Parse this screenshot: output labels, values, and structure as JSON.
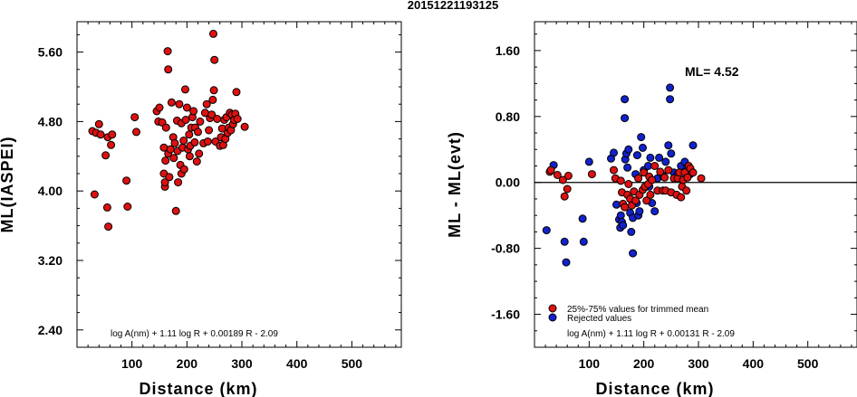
{
  "title": "20151221193125",
  "chart_data": [
    {
      "type": "scatter",
      "xlabel": "Distance (km)",
      "ylabel": "ML(IASPEI)",
      "xlim": [
        0,
        590
      ],
      "ylim": [
        2.2,
        5.95
      ],
      "xticks": [
        100,
        200,
        300,
        400,
        500
      ],
      "yticks": [
        2.4,
        3.2,
        4.0,
        4.8,
        5.6
      ],
      "ytick_labels": [
        "2.40",
        "3.20",
        "4.00",
        "4.80",
        "5.60"
      ],
      "formula": "log A(nm) + 1.11 log R + 0.00189 R - 2.09",
      "series": [
        {
          "color": "#dd1111",
          "points": [
            [
              28,
              4.69
            ],
            [
              32,
              3.96
            ],
            [
              35,
              4.67
            ],
            [
              40,
              4.77
            ],
            [
              43,
              4.65
            ],
            [
              52,
              4.41
            ],
            [
              55,
              3.81
            ],
            [
              57,
              3.59
            ],
            [
              56,
              4.62
            ],
            [
              62,
              4.53
            ],
            [
              64,
              4.65
            ],
            [
              90,
              4.12
            ],
            [
              92,
              3.82
            ],
            [
              105,
              4.85
            ],
            [
              108,
              4.68
            ],
            [
              145,
              4.92
            ],
            [
              148,
              4.8
            ],
            [
              150,
              4.96
            ],
            [
              155,
              4.79
            ],
            [
              158,
              4.5
            ],
            [
              158,
              4.2
            ],
            [
              160,
              4.05
            ],
            [
              160,
              4.1
            ],
            [
              161,
              4.35
            ],
            [
              162,
              4.73
            ],
            [
              165,
              5.61
            ],
            [
              166,
              5.4
            ],
            [
              166,
              4.43
            ],
            [
              168,
              4.16
            ],
            [
              170,
              4.48
            ],
            [
              172,
              5.02
            ],
            [
              175,
              4.62
            ],
            [
              176,
              4.38
            ],
            [
              178,
              4.55
            ],
            [
              180,
              3.77
            ],
            [
              182,
              4.81
            ],
            [
              183,
              4.46
            ],
            [
              184,
              4.1
            ],
            [
              186,
              5.0
            ],
            [
              188,
              4.3
            ],
            [
              190,
              4.78
            ],
            [
              190,
              4.2
            ],
            [
              192,
              4.5
            ],
            [
              194,
              4.58
            ],
            [
              195,
              4.25
            ],
            [
              197,
              5.17
            ],
            [
              198,
              4.82
            ],
            [
              200,
              4.96
            ],
            [
              202,
              4.48
            ],
            [
              204,
              4.65
            ],
            [
              205,
              4.4
            ],
            [
              206,
              4.52
            ],
            [
              208,
              4.73
            ],
            [
              210,
              4.85
            ],
            [
              212,
              4.92
            ],
            [
              214,
              4.56
            ],
            [
              215,
              4.73
            ],
            [
              218,
              4.34
            ],
            [
              220,
              4.68
            ],
            [
              222,
              4.43
            ],
            [
              224,
              4.8
            ],
            [
              230,
              4.55
            ],
            [
              233,
              4.9
            ],
            [
              236,
              5.0
            ],
            [
              238,
              4.57
            ],
            [
              240,
              4.7
            ],
            [
              242,
              4.84
            ],
            [
              245,
              4.88
            ],
            [
              247,
              5.05
            ],
            [
              248,
              5.81
            ],
            [
              249,
              5.16
            ],
            [
              250,
              5.51
            ],
            [
              252,
              4.57
            ],
            [
              255,
              4.83
            ],
            [
              260,
              4.52
            ],
            [
              262,
              4.62
            ],
            [
              264,
              4.72
            ],
            [
              266,
              4.53
            ],
            [
              268,
              4.82
            ],
            [
              270,
              4.6
            ],
            [
              272,
              4.85
            ],
            [
              274,
              4.67
            ],
            [
              276,
              4.73
            ],
            [
              278,
              4.9
            ],
            [
              280,
              4.7
            ],
            [
              282,
              4.88
            ],
            [
              284,
              4.77
            ],
            [
              286,
              4.82
            ],
            [
              288,
              4.89
            ],
            [
              290,
              5.14
            ],
            [
              292,
              4.83
            ],
            [
              305,
              4.74
            ]
          ]
        }
      ]
    },
    {
      "type": "scatter",
      "xlabel": "Distance (km)",
      "ylabel": "ML - ML(evt)",
      "xlim": [
        0,
        590
      ],
      "ylim": [
        -2.0,
        1.95
      ],
      "xticks": [
        100,
        200,
        300,
        400,
        500
      ],
      "yticks": [
        -1.6,
        -0.8,
        0.0,
        0.8,
        1.6
      ],
      "ytick_labels": [
        "-1.60",
        "-0.80",
        "0.00",
        "0.80",
        "1.60"
      ],
      "reference_line_y": 0,
      "ml_label": "ML= 4.52",
      "formula": "log A(nm) + 1.11 log R + 0.00131 R - 2.09",
      "legend": [
        "25%-75% values for trimmed mean",
        "Rejected values"
      ],
      "series": [
        {
          "name": "25%-75% values for trimmed mean",
          "color": "#dd1111",
          "points": [
            [
              28,
              0.13
            ],
            [
              30,
              0.15
            ],
            [
              42,
              0.09
            ],
            [
              52,
              0.03
            ],
            [
              55,
              -0.17
            ],
            [
              60,
              -0.08
            ],
            [
              62,
              0.08
            ],
            [
              105,
              0.1
            ],
            [
              145,
              0.15
            ],
            [
              148,
              0.05
            ],
            [
              158,
              0.02
            ],
            [
              160,
              -0.12
            ],
            [
              162,
              -0.26
            ],
            [
              165,
              -0.3
            ],
            [
              170,
              -0.15
            ],
            [
              172,
              -0.02
            ],
            [
              175,
              -0.2
            ],
            [
              178,
              -0.28
            ],
            [
              182,
              -0.11
            ],
            [
              185,
              -0.22
            ],
            [
              190,
              0.05
            ],
            [
              192,
              -0.15
            ],
            [
              198,
              -0.09
            ],
            [
              200,
              0.12
            ],
            [
              202,
              -0.05
            ],
            [
              205,
              -0.22
            ],
            [
              208,
              -0.02
            ],
            [
              210,
              0.07
            ],
            [
              212,
              -0.15
            ],
            [
              215,
              0.03
            ],
            [
              220,
              0.2
            ],
            [
              225,
              -0.1
            ],
            [
              230,
              0.13
            ],
            [
              235,
              -0.1
            ],
            [
              238,
              0.06
            ],
            [
              240,
              -0.1
            ],
            [
              245,
              0.15
            ],
            [
              250,
              -0.12
            ],
            [
              255,
              0.05
            ],
            [
              260,
              -0.15
            ],
            [
              262,
              0.05
            ],
            [
              265,
              0.12
            ],
            [
              268,
              -0.18
            ],
            [
              270,
              -0.05
            ],
            [
              272,
              0.03
            ],
            [
              275,
              0.12
            ],
            [
              278,
              -0.1
            ],
            [
              280,
              0.06
            ],
            [
              282,
              0.2
            ],
            [
              285,
              0.17
            ],
            [
              290,
              0.12
            ],
            [
              305,
              0.05
            ]
          ]
        },
        {
          "name": "Rejected values",
          "color": "#1122cc",
          "points": [
            [
              22,
              -0.58
            ],
            [
              35,
              0.21
            ],
            [
              55,
              -0.72
            ],
            [
              58,
              -0.97
            ],
            [
              88,
              -0.44
            ],
            [
              90,
              -0.72
            ],
            [
              100,
              0.25
            ],
            [
              140,
              0.29
            ],
            [
              145,
              0.36
            ],
            [
              150,
              -0.27
            ],
            [
              155,
              -0.45
            ],
            [
              157,
              -0.55
            ],
            [
              158,
              -0.4
            ],
            [
              160,
              -0.48
            ],
            [
              162,
              -0.52
            ],
            [
              165,
              0.78
            ],
            [
              165,
              1.01
            ],
            [
              166,
              0.28
            ],
            [
              168,
              0.35
            ],
            [
              170,
              0.18
            ],
            [
              172,
              0.4
            ],
            [
              175,
              -0.37
            ],
            [
              177,
              -0.6
            ],
            [
              180,
              -0.86
            ],
            [
              180,
              -0.43
            ],
            [
              185,
              0.1
            ],
            [
              187,
              -0.25
            ],
            [
              188,
              0.33
            ],
            [
              190,
              -0.4
            ],
            [
              192,
              -0.35
            ],
            [
              195,
              0.55
            ],
            [
              198,
              0.42
            ],
            [
              200,
              0.15
            ],
            [
              205,
              -0.05
            ],
            [
              208,
              0.2
            ],
            [
              210,
              -0.05
            ],
            [
              212,
              0.3
            ],
            [
              215,
              -0.25
            ],
            [
              220,
              -0.35
            ],
            [
              225,
              0.05
            ],
            [
              228,
              0.3
            ],
            [
              235,
              0.08
            ],
            [
              240,
              0.25
            ],
            [
              245,
              0.45
            ],
            [
              248,
              1.01
            ],
            [
              248,
              1.15
            ],
            [
              250,
              0.35
            ],
            [
              255,
              0.12
            ],
            [
              262,
              0.1
            ],
            [
              268,
              0.2
            ],
            [
              275,
              0.25
            ],
            [
              280,
              0.18
            ],
            [
              285,
              0.1
            ],
            [
              290,
              0.45
            ]
          ]
        }
      ]
    }
  ]
}
